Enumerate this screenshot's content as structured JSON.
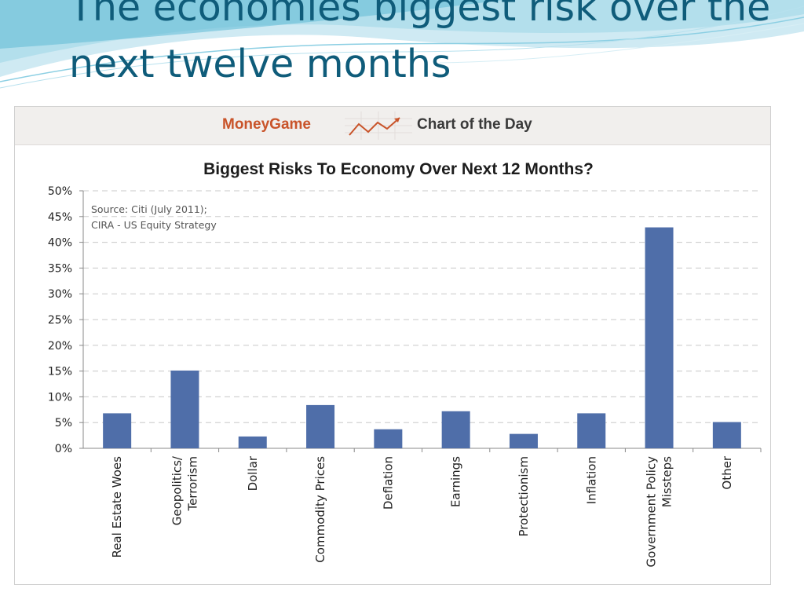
{
  "slide": {
    "title": "The economies biggest risk over the next twelve months"
  },
  "banner": {
    "brand": "MoneyGame",
    "brand_icon": "trend-arrow-icon",
    "subtitle": "Chart of the Day"
  },
  "chart_data": {
    "type": "bar",
    "title": "Biggest Risks To Economy Over Next 12 Months?",
    "note": [
      "Source: Citi (July 2011);",
      "CIRA - US Equity Strategy"
    ],
    "categories": [
      [
        "Real Estate Woes"
      ],
      [
        "Geopolitics/",
        "Terrorism"
      ],
      [
        "Dollar"
      ],
      [
        "Commodity Prices"
      ],
      [
        "Deflation"
      ],
      [
        "Earnings"
      ],
      [
        "Protectionism"
      ],
      [
        "Inflation"
      ],
      [
        "Government Policy",
        "Missteps"
      ],
      [
        "Other"
      ]
    ],
    "values": [
      6.8,
      15.1,
      2.3,
      8.4,
      3.7,
      7.2,
      2.8,
      6.8,
      42.9,
      5.1
    ],
    "ylim": [
      0,
      50
    ],
    "yticks": [
      0,
      5,
      10,
      15,
      20,
      25,
      30,
      35,
      40,
      45,
      50
    ],
    "ytick_labels": [
      "0%",
      "5%",
      "10%",
      "15%",
      "20%",
      "25%",
      "30%",
      "35%",
      "40%",
      "45%",
      "50%"
    ],
    "xlabel": "",
    "ylabel": "",
    "grid": true,
    "bar_color": "#4f6ea9",
    "grid_color": "#c8c8c8"
  }
}
